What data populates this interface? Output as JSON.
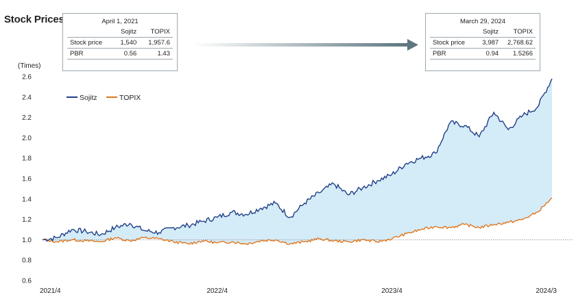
{
  "title": "Stock Prices",
  "box_left": {
    "date": "April 1, 2021",
    "col1": "Sojitz",
    "col2": "TOPIX",
    "rows": [
      {
        "label": "Stock price",
        "v1": "1,540",
        "v2": "1,957.6"
      },
      {
        "label": "PBR",
        "v1": "0.56",
        "v2": "1.43"
      }
    ]
  },
  "box_right": {
    "date": "March 29, 2024",
    "col1": "Sojitz",
    "col2": "TOPIX",
    "rows": [
      {
        "label": "Stock price",
        "v1": "3,987",
        "v2": "2,768.62"
      },
      {
        "label": "PBR",
        "v1": "0.94",
        "v2": "1.5266"
      }
    ]
  },
  "chart_data": {
    "type": "line",
    "ylabel": "(Times)",
    "ylim": [
      0.6,
      2.6
    ],
    "yticks": [
      "2.6",
      "2.4",
      "2.2",
      "2.0",
      "1.8",
      "1.6",
      "1.4",
      "1.2",
      "1.0",
      "0.8",
      "0.6"
    ],
    "xticks": [
      "2021/4",
      "2022/4",
      "2023/4",
      "2024/3"
    ],
    "reference_line": 1.0,
    "legend_placement": "top-left",
    "colors": {
      "Sojitz": "#1f3f87",
      "TOPIX": "#e0761c",
      "fill": "#d4ebf8",
      "arrow": "#5d7680"
    },
    "x": [
      "2021/4",
      "2021/5",
      "2021/6",
      "2021/7",
      "2021/8",
      "2021/9",
      "2021/10",
      "2021/11",
      "2021/12",
      "2022/1",
      "2022/2",
      "2022/3",
      "2022/4",
      "2022/5",
      "2022/6",
      "2022/7",
      "2022/8",
      "2022/9",
      "2022/10",
      "2022/11",
      "2022/12",
      "2023/1",
      "2023/2",
      "2023/3",
      "2023/4",
      "2023/5",
      "2023/6",
      "2023/7",
      "2023/8",
      "2023/9",
      "2023/10",
      "2023/11",
      "2023/12",
      "2024/1",
      "2024/2",
      "2024/3"
    ],
    "series": [
      {
        "name": "Sojitz",
        "values": [
          1.0,
          1.02,
          1.1,
          1.08,
          1.05,
          1.12,
          1.16,
          1.09,
          1.07,
          1.12,
          1.14,
          1.18,
          1.22,
          1.27,
          1.25,
          1.31,
          1.36,
          1.22,
          1.36,
          1.46,
          1.55,
          1.44,
          1.51,
          1.58,
          1.64,
          1.75,
          1.8,
          1.85,
          2.15,
          2.12,
          2.01,
          2.25,
          2.08,
          2.22,
          2.3,
          2.58
        ]
      },
      {
        "name": "TOPIX",
        "values": [
          1.0,
          0.98,
          1.0,
          0.99,
          0.98,
          1.02,
          0.99,
          1.02,
          1.01,
          0.98,
          0.96,
          0.99,
          0.97,
          0.98,
          0.96,
          0.99,
          1.0,
          0.96,
          0.98,
          1.01,
          0.99,
          0.98,
          1.0,
          0.98,
          1.01,
          1.06,
          1.1,
          1.13,
          1.12,
          1.15,
          1.12,
          1.15,
          1.17,
          1.2,
          1.27,
          1.41
        ]
      }
    ]
  }
}
